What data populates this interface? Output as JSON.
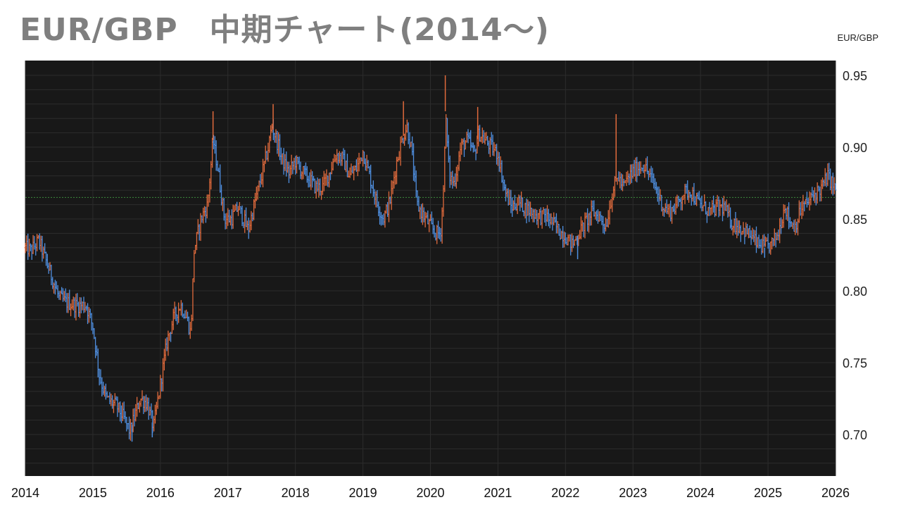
{
  "title": "EUR/GBP　中期チャート(2014～)",
  "pair_label": "EUR/GBP",
  "colors": {
    "background": "#181818",
    "up": "#e06a3c",
    "down": "#4f8fe0",
    "grid": "#2c2c2c",
    "ref_line": "#3d8a3d"
  },
  "chart_data": {
    "type": "ohlc",
    "title": "EUR/GBP　中期チャート(2014～)",
    "ylabel": "EUR/GBP",
    "ylim": [
      0.67,
      0.96
    ],
    "xlim": [
      2014.0,
      2026.0
    ],
    "y_ticks": [
      "0.70",
      "0.75",
      "0.80",
      "0.85",
      "0.90",
      "0.95"
    ],
    "x_ticks": [
      "2014",
      "2015",
      "2016",
      "2017",
      "2018",
      "2019",
      "2020",
      "2021",
      "2022",
      "2023",
      "2024",
      "2025",
      "2026"
    ],
    "reference_line": 0.865,
    "grid": true,
    "series_path": [
      [
        2014.0,
        0.83
      ],
      [
        2014.08,
        0.828
      ],
      [
        2014.2,
        0.835
      ],
      [
        2014.35,
        0.815
      ],
      [
        2014.5,
        0.795
      ],
      [
        2014.6,
        0.792
      ],
      [
        2014.75,
        0.79
      ],
      [
        2014.9,
        0.79
      ],
      [
        2015.0,
        0.775
      ],
      [
        2015.1,
        0.74
      ],
      [
        2015.2,
        0.725
      ],
      [
        2015.35,
        0.72
      ],
      [
        2015.45,
        0.712
      ],
      [
        2015.55,
        0.702
      ],
      [
        2015.7,
        0.725
      ],
      [
        2015.8,
        0.722
      ],
      [
        2015.9,
        0.705
      ],
      [
        2016.0,
        0.735
      ],
      [
        2016.1,
        0.765
      ],
      [
        2016.2,
        0.782
      ],
      [
        2016.3,
        0.79
      ],
      [
        2016.4,
        0.78
      ],
      [
        2016.45,
        0.77
      ],
      [
        2016.5,
        0.828
      ],
      [
        2016.6,
        0.85
      ],
      [
        2016.7,
        0.86
      ],
      [
        2016.78,
        0.905
      ],
      [
        2016.85,
        0.885
      ],
      [
        2016.95,
        0.85
      ],
      [
        2017.05,
        0.85
      ],
      [
        2017.15,
        0.858
      ],
      [
        2017.25,
        0.848
      ],
      [
        2017.3,
        0.842
      ],
      [
        2017.4,
        0.862
      ],
      [
        2017.5,
        0.88
      ],
      [
        2017.6,
        0.9
      ],
      [
        2017.65,
        0.915
      ],
      [
        2017.72,
        0.905
      ],
      [
        2017.8,
        0.892
      ],
      [
        2017.9,
        0.882
      ],
      [
        2018.0,
        0.89
      ],
      [
        2018.1,
        0.883
      ],
      [
        2018.2,
        0.878
      ],
      [
        2018.3,
        0.872
      ],
      [
        2018.4,
        0.872
      ],
      [
        2018.5,
        0.882
      ],
      [
        2018.6,
        0.895
      ],
      [
        2018.7,
        0.892
      ],
      [
        2018.8,
        0.88
      ],
      [
        2018.9,
        0.885
      ],
      [
        2019.0,
        0.897
      ],
      [
        2019.1,
        0.88
      ],
      [
        2019.2,
        0.862
      ],
      [
        2019.3,
        0.85
      ],
      [
        2019.4,
        0.862
      ],
      [
        2019.5,
        0.89
      ],
      [
        2019.58,
        0.905
      ],
      [
        2019.65,
        0.915
      ],
      [
        2019.72,
        0.898
      ],
      [
        2019.8,
        0.86
      ],
      [
        2019.9,
        0.852
      ],
      [
        2020.0,
        0.845
      ],
      [
        2020.08,
        0.84
      ],
      [
        2020.15,
        0.84
      ],
      [
        2020.2,
        0.875
      ],
      [
        2020.22,
        0.925
      ],
      [
        2020.28,
        0.88
      ],
      [
        2020.35,
        0.875
      ],
      [
        2020.45,
        0.9
      ],
      [
        2020.55,
        0.905
      ],
      [
        2020.65,
        0.895
      ],
      [
        2020.72,
        0.91
      ],
      [
        2020.8,
        0.905
      ],
      [
        2020.9,
        0.9
      ],
      [
        2021.0,
        0.895
      ],
      [
        2021.1,
        0.87
      ],
      [
        2021.2,
        0.858
      ],
      [
        2021.3,
        0.862
      ],
      [
        2021.4,
        0.858
      ],
      [
        2021.5,
        0.855
      ],
      [
        2021.6,
        0.852
      ],
      [
        2021.7,
        0.852
      ],
      [
        2021.8,
        0.848
      ],
      [
        2021.9,
        0.842
      ],
      [
        2022.0,
        0.838
      ],
      [
        2022.1,
        0.832
      ],
      [
        2022.2,
        0.84
      ],
      [
        2022.3,
        0.848
      ],
      [
        2022.4,
        0.855
      ],
      [
        2022.5,
        0.852
      ],
      [
        2022.6,
        0.845
      ],
      [
        2022.7,
        0.87
      ],
      [
        2022.78,
        0.88
      ],
      [
        2022.85,
        0.872
      ],
      [
        2022.95,
        0.88
      ],
      [
        2023.05,
        0.885
      ],
      [
        2023.15,
        0.888
      ],
      [
        2023.25,
        0.88
      ],
      [
        2023.35,
        0.87
      ],
      [
        2023.45,
        0.858
      ],
      [
        2023.55,
        0.855
      ],
      [
        2023.65,
        0.86
      ],
      [
        2023.75,
        0.868
      ],
      [
        2023.85,
        0.87
      ],
      [
        2023.95,
        0.862
      ],
      [
        2024.05,
        0.858
      ],
      [
        2024.15,
        0.855
      ],
      [
        2024.25,
        0.858
      ],
      [
        2024.35,
        0.858
      ],
      [
        2024.45,
        0.848
      ],
      [
        2024.55,
        0.845
      ],
      [
        2024.65,
        0.842
      ],
      [
        2024.75,
        0.838
      ],
      [
        2024.85,
        0.832
      ],
      [
        2024.95,
        0.83
      ],
      [
        2025.05,
        0.832
      ],
      [
        2025.15,
        0.84
      ],
      [
        2025.25,
        0.86
      ],
      [
        2025.32,
        0.848
      ],
      [
        2025.4,
        0.845
      ],
      [
        2025.5,
        0.858
      ],
      [
        2025.6,
        0.862
      ],
      [
        2025.7,
        0.868
      ],
      [
        2025.8,
        0.872
      ],
      [
        2025.88,
        0.88
      ],
      [
        2025.95,
        0.875
      ],
      [
        2026.0,
        0.87
      ]
    ],
    "spikes": [
      [
        2016.78,
        0.925
      ],
      [
        2017.67,
        0.93
      ],
      [
        2019.6,
        0.932
      ],
      [
        2020.22,
        0.95
      ],
      [
        2020.7,
        0.928
      ],
      [
        2022.75,
        0.923
      ],
      [
        2015.58,
        0.695
      ],
      [
        2015.88,
        0.698
      ],
      [
        2022.18,
        0.822
      ],
      [
        2024.95,
        0.823
      ]
    ]
  }
}
